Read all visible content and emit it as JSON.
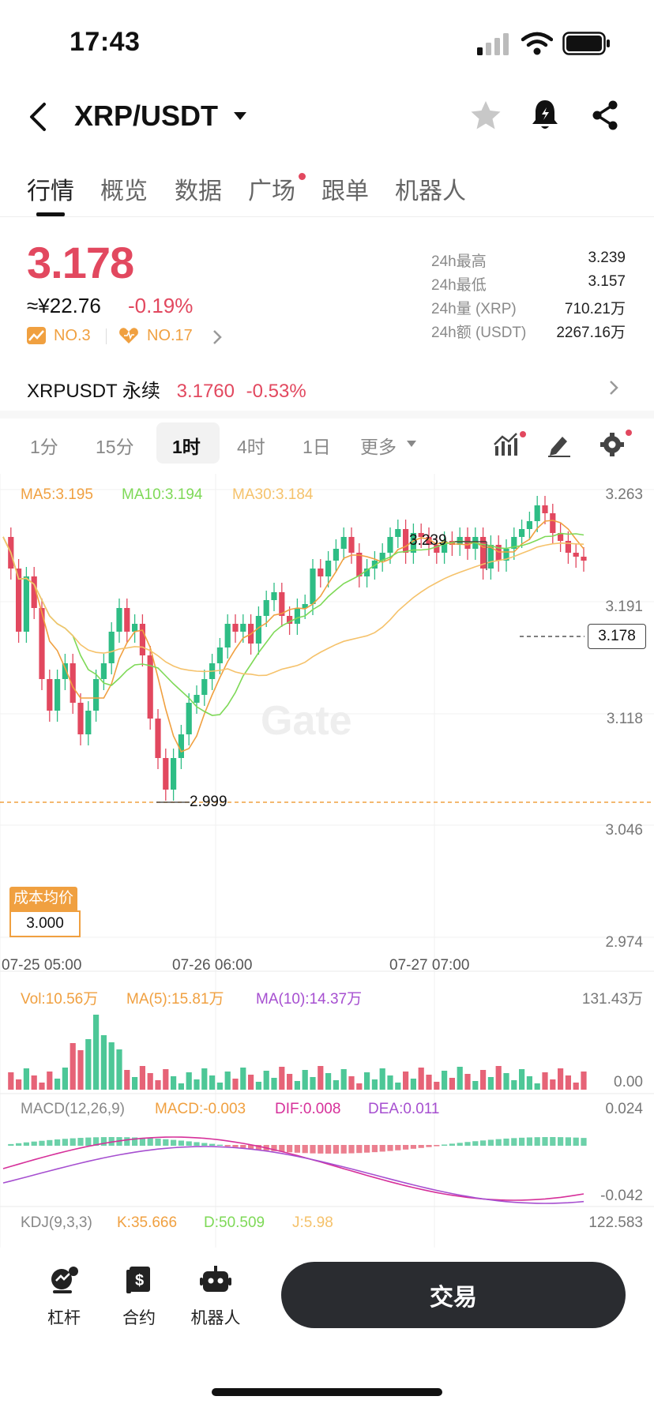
{
  "status_bar": {
    "time": "17:43"
  },
  "header": {
    "pair": "XRP/USDT"
  },
  "tabs": [
    {
      "label": "行情",
      "active": true
    },
    {
      "label": "概览"
    },
    {
      "label": "数据"
    },
    {
      "label": "广场",
      "dot": true
    },
    {
      "label": "跟单"
    },
    {
      "label": "机器人"
    }
  ],
  "ticker": {
    "price": "3.178",
    "cny": "≈¥22.76",
    "change": "-0.19%",
    "rank1": "NO.3",
    "rank2": "NO.17",
    "stats": [
      {
        "label": "24h最高",
        "value": "3.239"
      },
      {
        "label": "24h最低",
        "value": "3.157"
      },
      {
        "label": "24h量 (XRP)",
        "value": "710.21万"
      },
      {
        "label": "24h额 (USDT)",
        "value": "2267.16万"
      }
    ]
  },
  "perpetual": {
    "name": "XRPUSDT 永续",
    "price": "3.1760",
    "change": "-0.53%"
  },
  "intervals": [
    {
      "label": "1分"
    },
    {
      "label": "15分"
    },
    {
      "label": "1时",
      "active": true
    },
    {
      "label": "4时"
    },
    {
      "label": "1日"
    },
    {
      "label": "更多"
    }
  ],
  "main_chart": {
    "legend": {
      "ma5": "MA5:3.195",
      "ma10": "MA10:3.194",
      "ma30": "MA30:3.184"
    },
    "y_ticks": [
      "3.263",
      "3.191",
      "3.118",
      "3.046",
      "2.974"
    ],
    "x_ticks": [
      "07-25 05:00",
      "07-26 06:00",
      "07-27 07:00"
    ],
    "high_label": "3.239",
    "low_label": "2.999",
    "last_price": "3.178",
    "cost_label": "成本均价",
    "cost_value": "3.000",
    "colors": {
      "up": "#2ebd85",
      "down": "#e2485f",
      "ma5": "#f0a040",
      "ma10": "#7ed957",
      "ma30": "#f5c26b"
    }
  },
  "volume_panel": {
    "vol": "Vol:10.56万",
    "ma5": "MA(5):15.81万",
    "ma10": "MA(10):14.37万",
    "top": "131.43万",
    "bottom": "0.00"
  },
  "macd_panel": {
    "title": "MACD(12,26,9)",
    "macd": "MACD:-0.003",
    "dif": "DIF:0.008",
    "dea": "DEA:0.011",
    "top": "0.024",
    "bottom": "-0.042"
  },
  "kdj_panel": {
    "title": "KDJ(9,3,3)",
    "k": "K:35.666",
    "d": "D:50.509",
    "j": "J:5.98",
    "top": "122.583"
  },
  "bottom_nav": {
    "items": [
      {
        "label": "杠杆",
        "icon": "leverage-icon"
      },
      {
        "label": "合约",
        "icon": "contract-icon"
      },
      {
        "label": "机器人",
        "icon": "robot-icon"
      }
    ],
    "trade": "交易"
  }
}
